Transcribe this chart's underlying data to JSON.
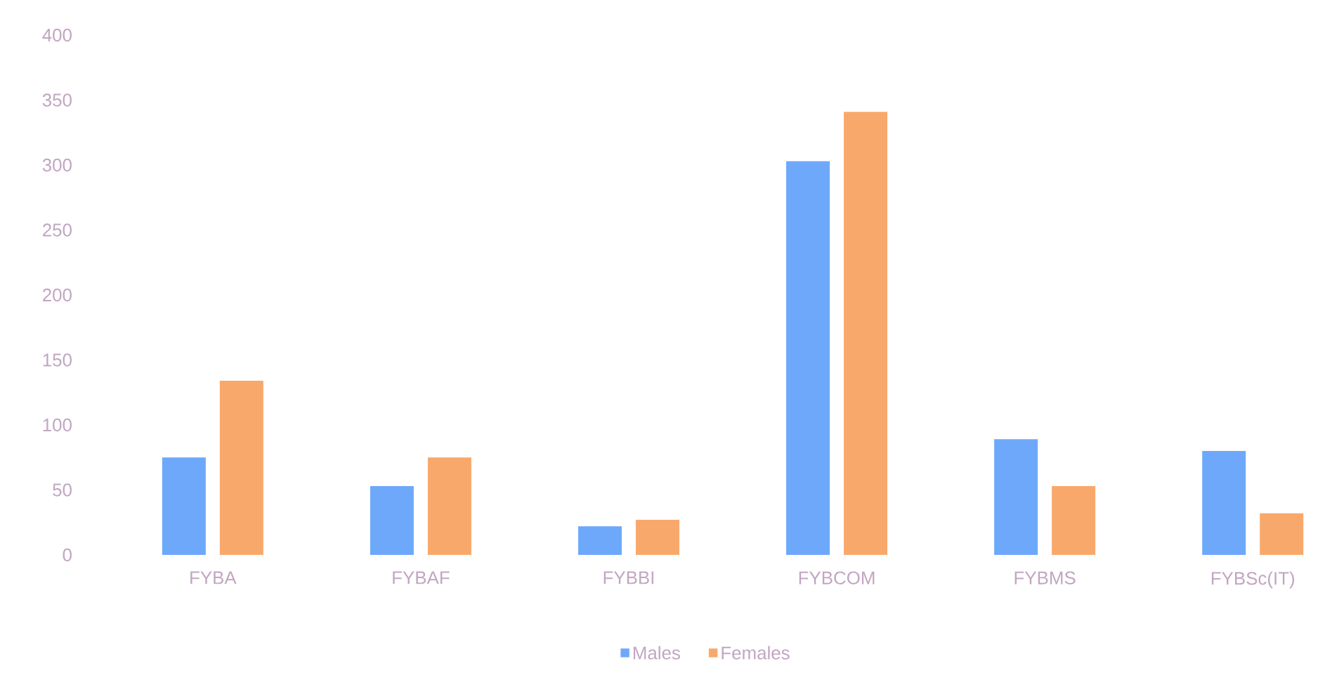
{
  "chart_data": {
    "type": "bar",
    "categories": [
      "FYBA",
      "FYBAF",
      "FYBBI",
      "FYBCOM",
      "FYBMS",
      "FYBSc(IT)"
    ],
    "series": [
      {
        "name": "Males",
        "color": "#6ea8fa",
        "values": [
          75,
          53,
          22,
          303,
          89,
          80
        ]
      },
      {
        "name": "Females",
        "color": "#f9a86c",
        "values": [
          134,
          75,
          27,
          341,
          53,
          32
        ]
      }
    ],
    "ylim": [
      0,
      400
    ],
    "yticks": [
      0,
      50,
      100,
      150,
      200,
      250,
      300,
      350,
      400
    ],
    "legend": "bottom"
  }
}
